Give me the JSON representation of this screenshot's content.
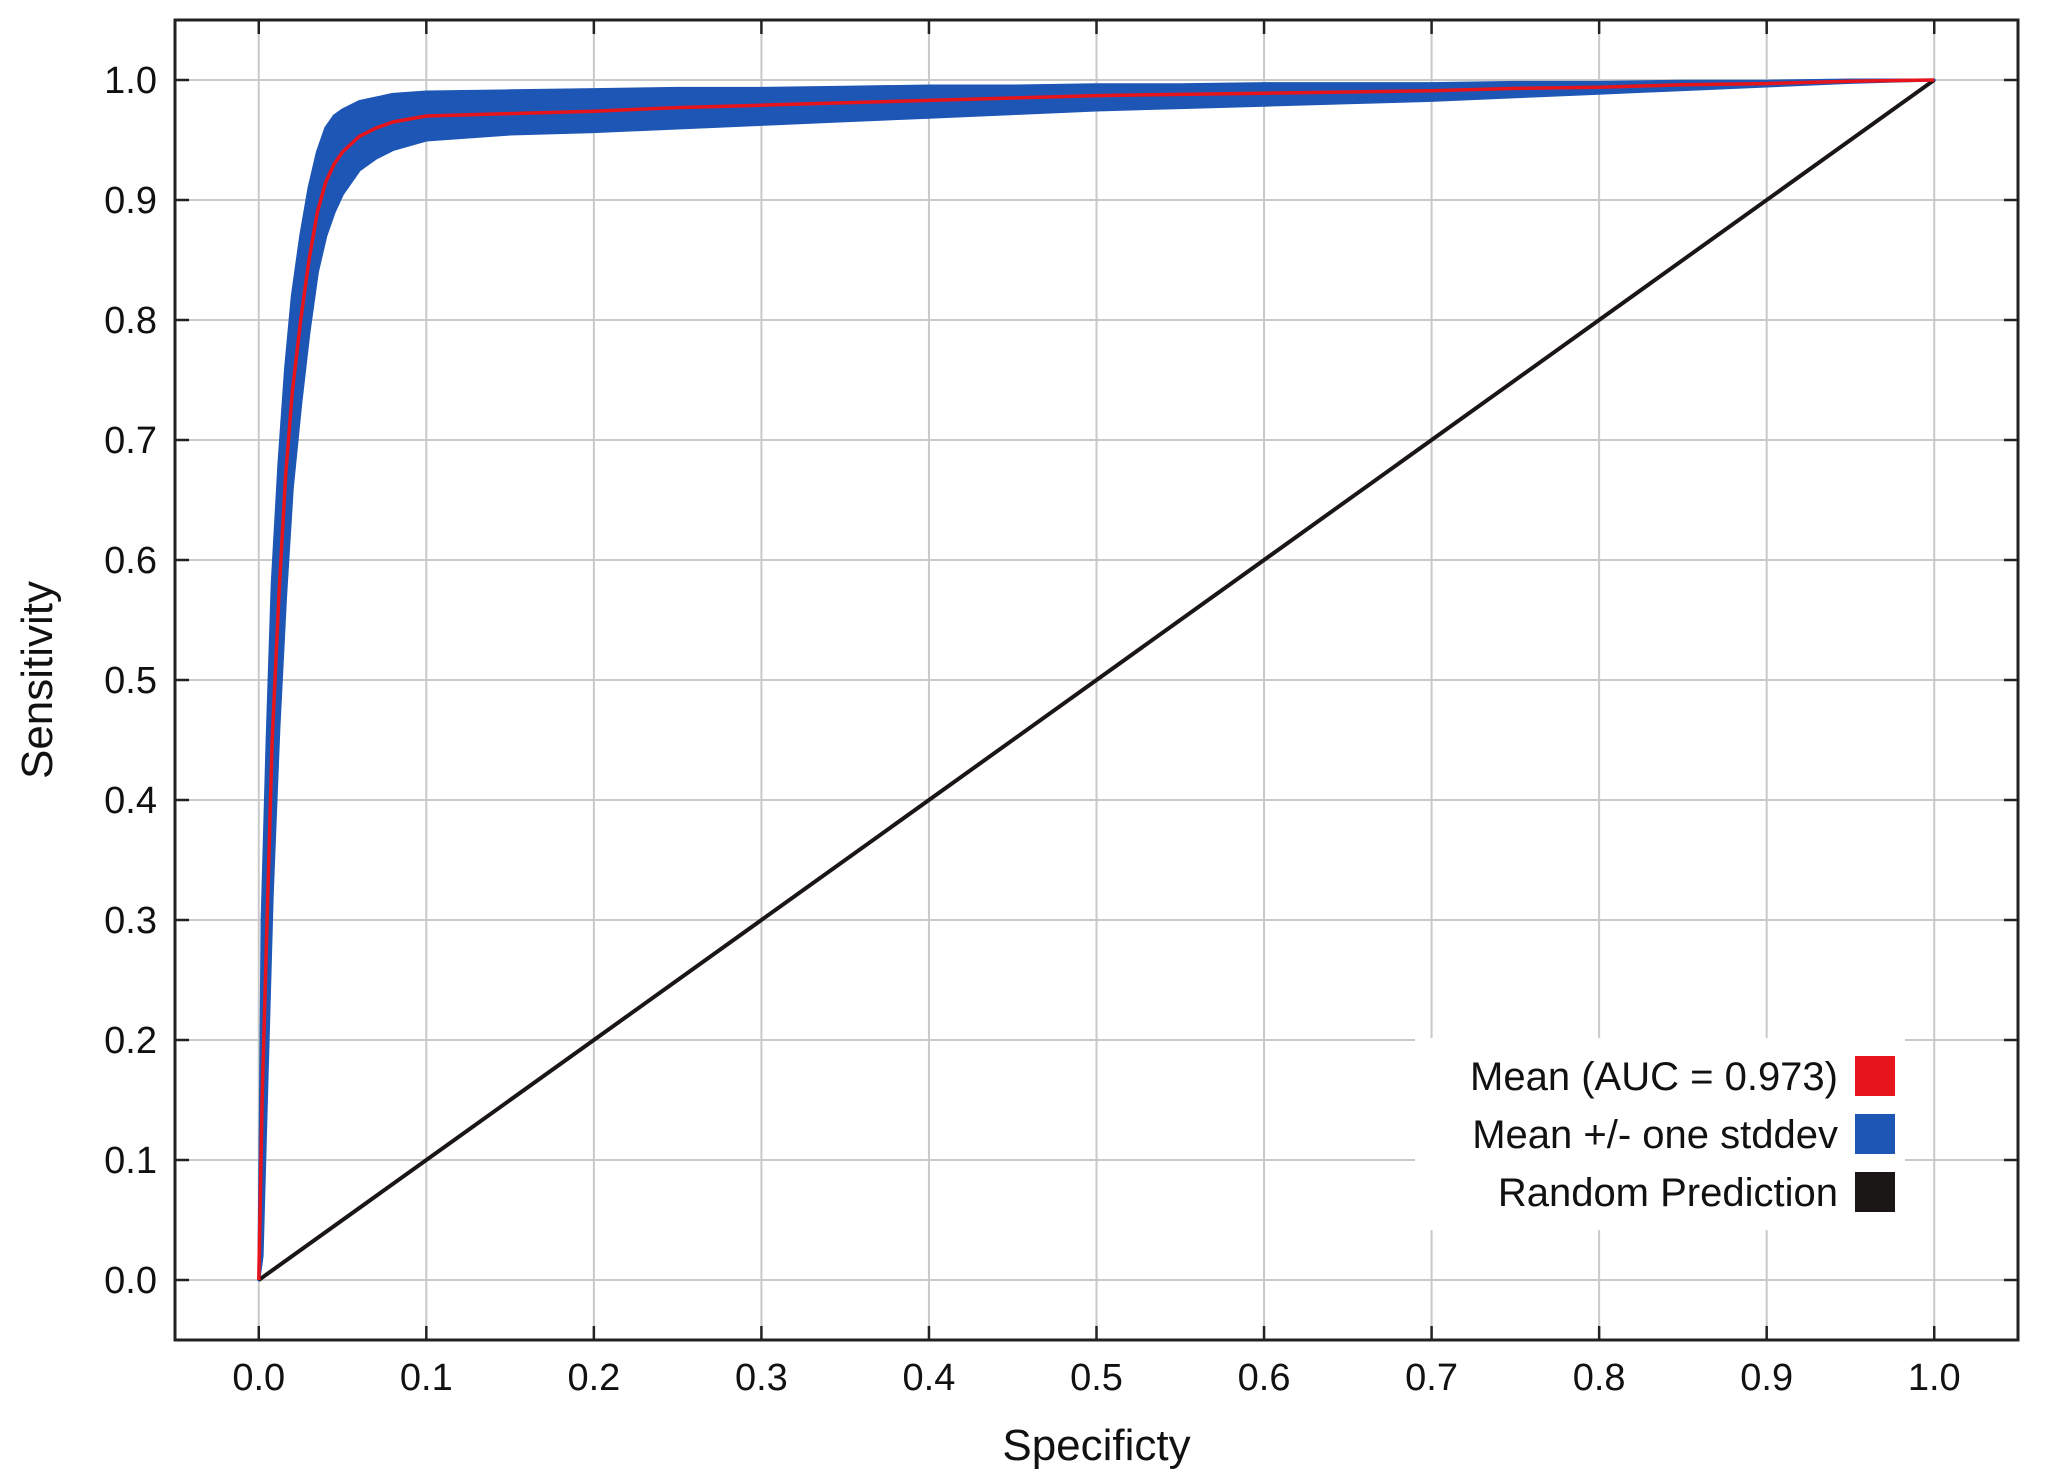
{
  "chart_data": {
    "type": "line",
    "title": "",
    "xlabel": "Specificty",
    "ylabel": "Sensitivity",
    "xlim": [
      -0.05,
      1.05
    ],
    "ylim": [
      -0.05,
      1.05
    ],
    "grid": true,
    "legend_position": "bottom-right",
    "x_ticks": [
      0.0,
      0.1,
      0.2,
      0.3,
      0.4,
      0.5,
      0.6,
      0.7,
      0.8,
      0.9,
      1.0
    ],
    "x_tick_labels": [
      "0.0",
      "0.1",
      "0.2",
      "0.3",
      "0.4",
      "0.5",
      "0.6",
      "0.7",
      "0.8",
      "0.9",
      "1.0"
    ],
    "y_ticks": [
      0.0,
      0.1,
      0.2,
      0.3,
      0.4,
      0.5,
      0.6,
      0.7,
      0.8,
      0.9,
      1.0
    ],
    "y_tick_labels": [
      "0.0",
      "0.1",
      "0.2",
      "0.3",
      "0.4",
      "0.5",
      "0.6",
      "0.7",
      "0.8",
      "0.9",
      "1.0"
    ],
    "series": [
      {
        "name": "Mean (AUC = 0.973)",
        "color": "#e8141c",
        "x": [
          0.0,
          0.002,
          0.005,
          0.008,
          0.012,
          0.016,
          0.02,
          0.025,
          0.03,
          0.035,
          0.04,
          0.045,
          0.05,
          0.06,
          0.07,
          0.08,
          0.1,
          0.15,
          0.2,
          0.25,
          0.3,
          0.35,
          0.4,
          0.45,
          0.5,
          0.55,
          0.6,
          0.65,
          0.7,
          0.75,
          0.8,
          0.85,
          0.9,
          0.95,
          1.0
        ],
        "y": [
          0.0,
          0.15,
          0.3,
          0.45,
          0.57,
          0.67,
          0.74,
          0.8,
          0.85,
          0.89,
          0.915,
          0.93,
          0.94,
          0.953,
          0.96,
          0.965,
          0.97,
          0.972,
          0.974,
          0.977,
          0.979,
          0.981,
          0.983,
          0.985,
          0.987,
          0.988,
          0.989,
          0.99,
          0.991,
          0.993,
          0.994,
          0.996,
          0.997,
          0.999,
          1.0
        ]
      },
      {
        "name": "Mean +/- one stddev",
        "color": "#1d56b5",
        "x": [
          0.0,
          0.002,
          0.005,
          0.008,
          0.012,
          0.016,
          0.02,
          0.025,
          0.03,
          0.035,
          0.04,
          0.045,
          0.05,
          0.06,
          0.07,
          0.08,
          0.1,
          0.15,
          0.2,
          0.25,
          0.3,
          0.35,
          0.4,
          0.45,
          0.5,
          0.55,
          0.6,
          0.65,
          0.7,
          0.75,
          0.8,
          0.85,
          0.9,
          0.95,
          1.0
        ],
        "upper": [
          0.0,
          0.3,
          0.45,
          0.58,
          0.68,
          0.76,
          0.82,
          0.87,
          0.91,
          0.94,
          0.96,
          0.97,
          0.975,
          0.982,
          0.985,
          0.988,
          0.99,
          0.991,
          0.992,
          0.993,
          0.993,
          0.994,
          0.995,
          0.995,
          0.996,
          0.996,
          0.997,
          0.997,
          0.997,
          0.998,
          0.998,
          0.999,
          0.999,
          1.0,
          1.0
        ],
        "lower": [
          0.0,
          0.02,
          0.17,
          0.32,
          0.46,
          0.57,
          0.66,
          0.73,
          0.79,
          0.84,
          0.87,
          0.89,
          0.905,
          0.925,
          0.935,
          0.942,
          0.95,
          0.955,
          0.957,
          0.96,
          0.963,
          0.966,
          0.969,
          0.972,
          0.975,
          0.977,
          0.979,
          0.981,
          0.983,
          0.986,
          0.989,
          0.992,
          0.995,
          0.998,
          1.0
        ]
      },
      {
        "name": "Random Prediction",
        "color": "#1a1616",
        "x": [
          0.0,
          1.0
        ],
        "y": [
          0.0,
          1.0
        ]
      }
    ],
    "legend": [
      {
        "label": "Mean (AUC = 0.973)",
        "color": "#e8141c"
      },
      {
        "label": "Mean +/- one stddev",
        "color": "#1d56b5"
      },
      {
        "label": "Random Prediction",
        "color": "#1a1616"
      }
    ]
  }
}
